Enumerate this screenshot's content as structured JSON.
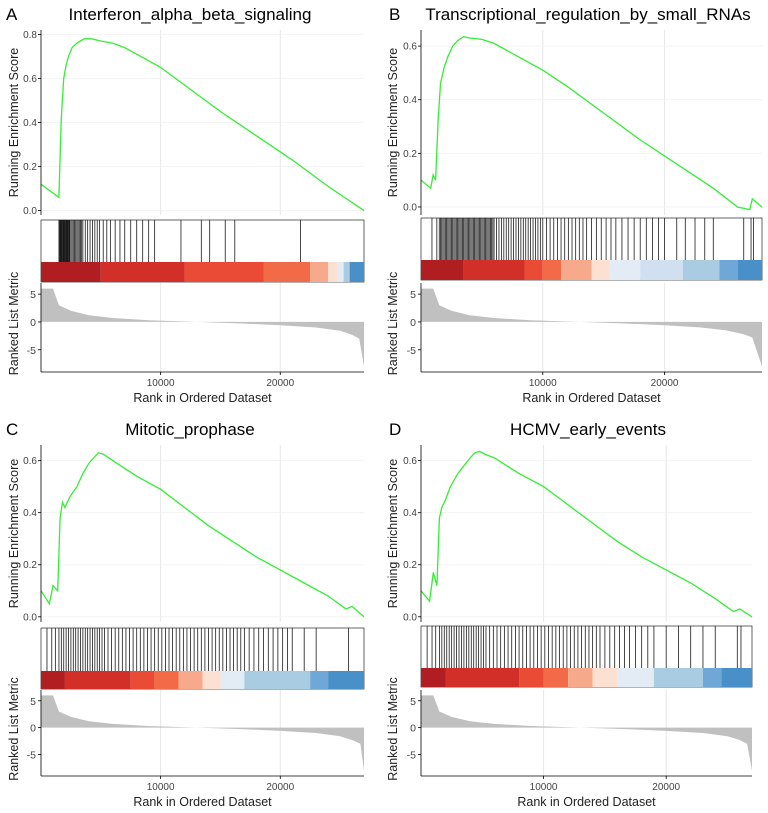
{
  "chart_data": [
    {
      "type": "line",
      "panel_letter": "A",
      "title": "Interferon_alpha_beta_signaling",
      "ylabel_top": "Running Enrichment Score",
      "ylabel_bottom": "Ranked List Metric",
      "xlabel": "Rank in Ordered Dataset",
      "xlim": [
        0,
        27000
      ],
      "ylim_es": [
        -0.02,
        0.82
      ],
      "es_ticks": [
        "0.0",
        "0.2",
        "0.4",
        "0.6",
        "0.8"
      ],
      "es_tick_values": [
        0.0,
        0.2,
        0.4,
        0.6,
        0.8
      ],
      "x_ticks": [
        "10000",
        "20000"
      ],
      "x_tick_values": [
        10000,
        20000
      ],
      "metric_ticks": [
        "5",
        "0",
        "-5"
      ],
      "metric_tick_values": [
        5,
        0,
        -5
      ],
      "running_es": {
        "x": [
          0,
          1500,
          1700,
          1900,
          2100,
          2300,
          2600,
          3000,
          3600,
          4200,
          5000,
          6000,
          7000,
          8000,
          9000,
          10000,
          12000,
          15000,
          18000,
          21000,
          24000,
          27000
        ],
        "y": [
          0.12,
          0.06,
          0.42,
          0.6,
          0.66,
          0.7,
          0.74,
          0.76,
          0.78,
          0.78,
          0.77,
          0.76,
          0.74,
          0.71,
          0.68,
          0.65,
          0.57,
          0.45,
          0.34,
          0.23,
          0.11,
          0.0
        ]
      },
      "gene_hits": [
        1500,
        1550,
        1600,
        1650,
        1700,
        1750,
        1800,
        1850,
        1900,
        1950,
        2000,
        2050,
        2100,
        2150,
        2200,
        2250,
        2300,
        2350,
        2400,
        2500,
        2600,
        2700,
        2800,
        2900,
        3000,
        3100,
        3200,
        3300,
        3400,
        3500,
        3700,
        3900,
        4100,
        4300,
        4500,
        4700,
        4900,
        5200,
        5500,
        5800,
        6200,
        6600,
        7000,
        7500,
        8000,
        8500,
        9000,
        9500,
        11700,
        13400,
        14100,
        15400,
        16200,
        21700
      ],
      "heat_colors": [
        "#B11E22",
        "#D22F28",
        "#E94B35",
        "#F26A47",
        "#F7AA8B",
        "#FCE0D2",
        "#E3EBF5",
        "#A9CCE3",
        "#4A90C8"
      ],
      "heat_boundaries": [
        0,
        5000,
        12000,
        18600,
        22500,
        24000,
        24800,
        25300,
        25800,
        27000
      ],
      "metric": {
        "x": [
          0,
          1000,
          1500,
          2500,
          4000,
          6000,
          9000,
          13000,
          17000,
          20000,
          23000,
          25000,
          26000,
          26600,
          27000
        ],
        "y": [
          6.0,
          6.0,
          3.0,
          2.0,
          1.2,
          0.7,
          0.3,
          0.0,
          -0.3,
          -0.6,
          -1.0,
          -1.6,
          -2.3,
          -3.0,
          -8.0
        ]
      }
    },
    {
      "type": "line",
      "panel_letter": "B",
      "title": "Transcriptional_regulation_by_small_RNAs",
      "ylabel_top": "Running Enrichment Score",
      "ylabel_bottom": "Ranked List Metric",
      "xlabel": "Rank in Ordered Dataset",
      "xlim": [
        0,
        28000
      ],
      "ylim_es": [
        -0.03,
        0.66
      ],
      "es_ticks": [
        "0.0",
        "0.2",
        "0.4",
        "0.6"
      ],
      "es_tick_values": [
        0.0,
        0.2,
        0.4,
        0.6
      ],
      "x_ticks": [
        "10000",
        "20000"
      ],
      "x_tick_values": [
        10000,
        20000
      ],
      "metric_ticks": [
        "5",
        "0",
        "-5"
      ],
      "metric_tick_values": [
        5,
        0,
        -5
      ],
      "running_es": {
        "x": [
          0,
          800,
          1000,
          1200,
          1400,
          1600,
          1900,
          2200,
          2600,
          3000,
          3500,
          4000,
          5000,
          6000,
          8000,
          10000,
          12000,
          15000,
          18000,
          21000,
          24000,
          26000,
          27000,
          27200,
          28000
        ],
        "y": [
          0.1,
          0.07,
          0.12,
          0.1,
          0.32,
          0.46,
          0.52,
          0.56,
          0.6,
          0.62,
          0.635,
          0.63,
          0.625,
          0.61,
          0.56,
          0.51,
          0.45,
          0.35,
          0.25,
          0.16,
          0.07,
          0.0,
          -0.01,
          0.03,
          0.0
        ]
      },
      "gene_hits": [
        900,
        1300,
        1500,
        1600,
        1700,
        1800,
        1900,
        2000,
        2100,
        2200,
        2300,
        2400,
        2500,
        2600,
        2700,
        2800,
        2900,
        3000,
        3100,
        3200,
        3300,
        3400,
        3500,
        3600,
        3700,
        3800,
        3900,
        4000,
        4100,
        4200,
        4300,
        4400,
        4500,
        4600,
        4700,
        4800,
        4900,
        5000,
        5100,
        5200,
        5300,
        5400,
        5500,
        5600,
        5700,
        5800,
        5900,
        6000,
        6200,
        6400,
        6600,
        6800,
        7000,
        7200,
        7400,
        7600,
        7800,
        8000,
        8200,
        8400,
        8600,
        8800,
        9000,
        9200,
        9400,
        9600,
        9800,
        10000,
        10300,
        10600,
        10900,
        11200,
        11500,
        11800,
        12100,
        12400,
        12700,
        13000,
        13300,
        13600,
        14000,
        14400,
        14800,
        15200,
        15600,
        16000,
        16500,
        17000,
        17500,
        18000,
        18500,
        19000,
        19500,
        20000,
        21000,
        21700,
        22500,
        23300,
        24000,
        26500,
        27100,
        27300
      ],
      "heat_colors": [
        "#B11E22",
        "#D22F28",
        "#E94B35",
        "#F26A47",
        "#F7AA8B",
        "#FCE0D2",
        "#E3EBF5",
        "#D0E0F0",
        "#A9CCE3",
        "#6FA8D6",
        "#4A90C8"
      ],
      "heat_boundaries": [
        0,
        3500,
        8500,
        10000,
        11500,
        14000,
        15500,
        18000,
        21500,
        24500,
        26000,
        28000
      ],
      "metric": {
        "x": [
          0,
          1000,
          1500,
          2500,
          4000,
          6000,
          9000,
          13000,
          17000,
          20000,
          23000,
          25000,
          26500,
          27200,
          28000
        ],
        "y": [
          6.0,
          6.0,
          3.0,
          2.0,
          1.2,
          0.7,
          0.3,
          0.0,
          -0.3,
          -0.6,
          -1.0,
          -1.5,
          -2.2,
          -2.8,
          -8.0
        ]
      }
    },
    {
      "type": "line",
      "panel_letter": "C",
      "title": "Mitotic_prophase",
      "ylabel_top": "Running Enrichment Score",
      "ylabel_bottom": "Ranked List Metric",
      "xlabel": "Rank in Ordered Dataset",
      "xlim": [
        0,
        27000
      ],
      "ylim_es": [
        -0.02,
        0.66
      ],
      "es_ticks": [
        "0.0",
        "0.2",
        "0.4",
        "0.6"
      ],
      "es_tick_values": [
        0.0,
        0.2,
        0.4,
        0.6
      ],
      "x_ticks": [
        "10000",
        "20000"
      ],
      "x_tick_values": [
        10000,
        20000
      ],
      "metric_ticks": [
        "5",
        "0",
        "-5"
      ],
      "metric_tick_values": [
        5,
        0,
        -5
      ],
      "running_es": {
        "x": [
          0,
          700,
          1000,
          1400,
          1600,
          1800,
          2000,
          2400,
          3000,
          3500,
          4000,
          4400,
          4800,
          5200,
          6000,
          7000,
          8000,
          10000,
          12000,
          14000,
          16000,
          18000,
          20000,
          22000,
          24000,
          25500,
          26000,
          27000
        ],
        "y": [
          0.1,
          0.05,
          0.12,
          0.1,
          0.38,
          0.44,
          0.42,
          0.46,
          0.5,
          0.55,
          0.59,
          0.61,
          0.63,
          0.625,
          0.6,
          0.57,
          0.54,
          0.49,
          0.42,
          0.35,
          0.29,
          0.23,
          0.18,
          0.13,
          0.08,
          0.03,
          0.04,
          0.0
        ]
      },
      "gene_hits": [
        500,
        900,
        1200,
        1500,
        1700,
        1900,
        2100,
        2300,
        2500,
        2700,
        2900,
        3100,
        3300,
        3500,
        3700,
        3900,
        4100,
        4300,
        4500,
        4700,
        4900,
        5100,
        5300,
        5600,
        5900,
        6200,
        6500,
        6800,
        7100,
        7400,
        7700,
        8000,
        8300,
        8600,
        8900,
        9200,
        9500,
        9800,
        10100,
        10400,
        10700,
        11000,
        11300,
        11600,
        11900,
        12200,
        12500,
        12800,
        13100,
        13400,
        13700,
        14000,
        14300,
        14600,
        14900,
        15200,
        15500,
        15800,
        16100,
        16400,
        16700,
        17000,
        17400,
        17800,
        18200,
        18600,
        19000,
        19400,
        19800,
        20200,
        20600,
        21000,
        22000,
        23000,
        25700
      ],
      "heat_colors": [
        "#B11E22",
        "#D22F28",
        "#E94B35",
        "#F26A47",
        "#F7AA8B",
        "#FCE0D2",
        "#E3EBF5",
        "#A9CCE3",
        "#6FA8D6",
        "#4A90C8"
      ],
      "heat_boundaries": [
        0,
        2000,
        7500,
        9500,
        11500,
        13500,
        15000,
        17000,
        22500,
        24000,
        27000
      ],
      "metric": {
        "x": [
          0,
          1000,
          1500,
          2500,
          4000,
          6000,
          9000,
          13000,
          17000,
          20000,
          23000,
          25000,
          26000,
          26700,
          27000
        ],
        "y": [
          6.0,
          6.0,
          3.0,
          2.0,
          1.2,
          0.7,
          0.3,
          0.0,
          -0.3,
          -0.6,
          -1.0,
          -1.6,
          -2.3,
          -3.0,
          -8.0
        ]
      }
    },
    {
      "type": "line",
      "panel_letter": "D",
      "title": "HCMV_early_events",
      "ylabel_top": "Running Enrichment Score",
      "ylabel_bottom": "Ranked List Metric",
      "xlabel": "Rank in Ordered Dataset",
      "xlim": [
        0,
        27000
      ],
      "ylim_es": [
        -0.02,
        0.66
      ],
      "es_ticks": [
        "0.0",
        "0.2",
        "0.4",
        "0.6"
      ],
      "es_tick_values": [
        0.0,
        0.2,
        0.4,
        0.6
      ],
      "x_ticks": [
        "10000",
        "20000"
      ],
      "x_tick_values": [
        10000,
        20000
      ],
      "metric_ticks": [
        "5",
        "0",
        "-5"
      ],
      "metric_tick_values": [
        5,
        0,
        -5
      ],
      "running_es": {
        "x": [
          0,
          700,
          1000,
          1300,
          1500,
          1700,
          2000,
          2400,
          3000,
          3500,
          4000,
          4400,
          4800,
          5200,
          6000,
          7000,
          8000,
          10000,
          12000,
          14000,
          16000,
          18000,
          20000,
          22000,
          24000,
          25500,
          26000,
          27000
        ],
        "y": [
          0.1,
          0.06,
          0.17,
          0.12,
          0.38,
          0.42,
          0.45,
          0.5,
          0.55,
          0.58,
          0.61,
          0.63,
          0.635,
          0.625,
          0.61,
          0.58,
          0.55,
          0.5,
          0.43,
          0.36,
          0.29,
          0.23,
          0.18,
          0.13,
          0.07,
          0.02,
          0.03,
          0.0
        ]
      },
      "gene_hits": [
        500,
        900,
        1200,
        1500,
        1700,
        1900,
        2100,
        2300,
        2500,
        2700,
        2900,
        3100,
        3300,
        3500,
        3700,
        3900,
        4100,
        4300,
        4500,
        4700,
        4900,
        5100,
        5300,
        5600,
        5900,
        6200,
        6500,
        6800,
        7100,
        7400,
        7700,
        8000,
        8300,
        8600,
        8900,
        9200,
        9500,
        9800,
        10100,
        10400,
        10700,
        11000,
        11300,
        11600,
        11900,
        12200,
        12500,
        12800,
        13100,
        13400,
        13700,
        14000,
        14300,
        14600,
        15000,
        15400,
        15800,
        16200,
        16600,
        17000,
        17500,
        18000,
        18500,
        19000,
        20000,
        21000,
        22000,
        23000,
        24000,
        25800,
        26100
      ],
      "heat_colors": [
        "#B11E22",
        "#D22F28",
        "#E94B35",
        "#F26A47",
        "#F7AA8B",
        "#FCE0D2",
        "#E3EBF5",
        "#A9CCE3",
        "#6FA8D6",
        "#4A90C8"
      ],
      "heat_boundaries": [
        0,
        2000,
        8000,
        10000,
        12000,
        14000,
        16000,
        19000,
        23000,
        24500,
        27000
      ],
      "metric": {
        "x": [
          0,
          1000,
          1500,
          2500,
          4000,
          6000,
          9000,
          13000,
          17000,
          20000,
          23000,
          25000,
          26000,
          26600,
          27000
        ],
        "y": [
          6.0,
          6.0,
          3.0,
          2.0,
          1.2,
          0.7,
          0.3,
          0.0,
          -0.3,
          -0.6,
          -1.0,
          -1.6,
          -2.3,
          -3.0,
          -8.0
        ]
      }
    }
  ],
  "colors": {
    "es_line": "#33EE33",
    "hit_line": "#1A1A1A",
    "metric_fill": "#C0C0C0",
    "grid": "#E6E6E6",
    "axis": "#000000"
  }
}
